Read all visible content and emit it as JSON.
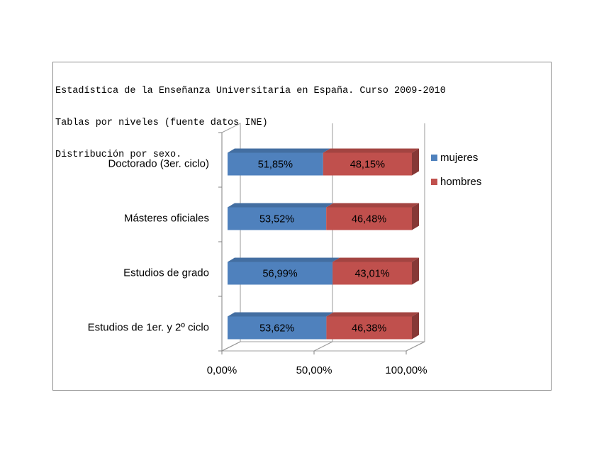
{
  "chart_data": {
    "type": "bar",
    "orientation": "horizontal",
    "stacked": "100%",
    "three_d": true,
    "title_lines": [
      "Estadística de la Enseñanza Universitaria en España. Curso 2009-2010",
      "Tablas por niveles (fuente datos INE)",
      "Distribución por sexo."
    ],
    "categories": [
      "Doctorado (3er. ciclo)",
      "Másteres oficiales",
      "Estudios de grado",
      "Estudios de 1er. y 2º ciclo"
    ],
    "series": [
      {
        "name": "mujeres",
        "color": "#4f81bd",
        "values": [
          51.85,
          53.52,
          56.99,
          53.62
        ],
        "labels": [
          "51,85%",
          "53,52%",
          "56,99%",
          "53,62%"
        ]
      },
      {
        "name": "hombres",
        "color": "#c0504d",
        "values": [
          48.15,
          46.48,
          43.01,
          46.38
        ],
        "labels": [
          "48,15%",
          "46,48%",
          "43,01%",
          "46,38%"
        ]
      }
    ],
    "x_ticks": [
      "0,00%",
      "50,00%",
      "100,00%"
    ],
    "xlim": [
      0,
      100
    ],
    "grid": true,
    "legend_position": "right"
  }
}
